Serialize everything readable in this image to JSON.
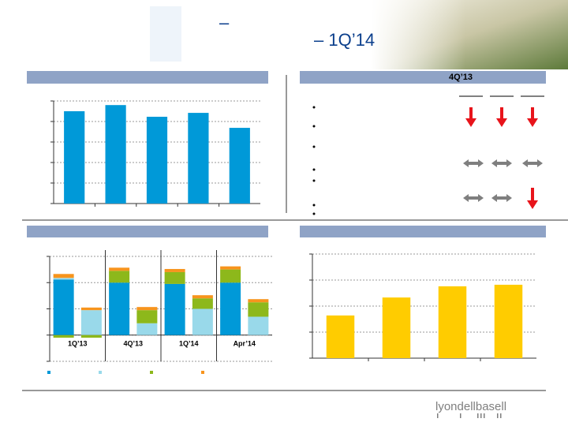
{
  "header": {
    "title": "–",
    "subtitle": "– 1Q’14"
  },
  "table": {
    "column_header": "4Q’13"
  },
  "chart_data": [
    {
      "type": "bar",
      "categories": [
        null,
        null,
        null,
        null,
        null
      ],
      "values": [
        4.5,
        4.8,
        4.23,
        4.42,
        3.69
      ],
      "color": "#0099d8",
      "ylim": [
        0,
        5
      ],
      "yticks": [
        0,
        1,
        2,
        3,
        4,
        5
      ],
      "grid": true
    },
    {
      "type": "stacked_bar",
      "categories": [
        "1Q’13",
        null,
        "4Q’13",
        null,
        "1Q’14",
        null,
        "Apr’14",
        null
      ],
      "series": [
        {
          "color": "#0099d8",
          "values": [
            2.12,
            0,
            2.0,
            0,
            1.95,
            0,
            2.0,
            0
          ]
        },
        {
          "color": "#99d9ea",
          "values": [
            0.06,
            0.95,
            0,
            0.45,
            0,
            1.0,
            0,
            0.7
          ]
        },
        {
          "color": "#8db81b",
          "values": [
            -0.1,
            -0.1,
            0.45,
            0.5,
            0.45,
            0.4,
            0.5,
            0.55
          ]
        },
        {
          "color": "#f7941d",
          "values": [
            0.15,
            0.1,
            0.12,
            0.12,
            0.12,
            0.12,
            0.12,
            0.12
          ]
        }
      ],
      "ylim": [
        -1,
        3
      ],
      "yticks": [
        -1,
        0,
        1,
        2,
        3
      ],
      "grid": true
    },
    {
      "type": "bar",
      "categories": [
        null,
        null,
        null,
        null
      ],
      "values": [
        1.64,
        2.33,
        2.76,
        2.82
      ],
      "color": "#ffcc00",
      "ylim": [
        0,
        4
      ],
      "yticks": [
        0,
        1,
        2,
        3,
        4
      ],
      "grid": true
    }
  ],
  "footer": {
    "logo": "lyondellbasell"
  }
}
